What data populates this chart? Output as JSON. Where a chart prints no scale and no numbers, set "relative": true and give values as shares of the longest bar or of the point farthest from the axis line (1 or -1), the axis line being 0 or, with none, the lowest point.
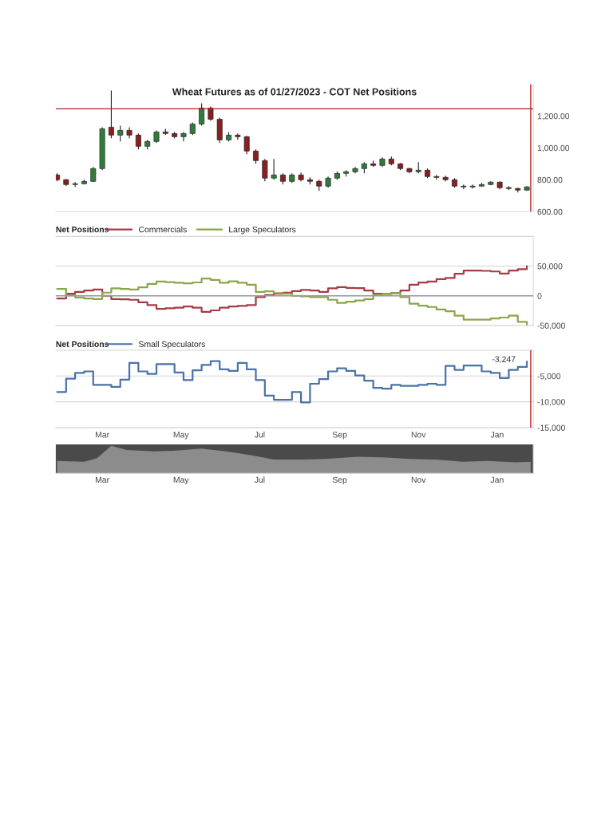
{
  "chart_data": [
    {
      "type": "candlestick",
      "title": "Wheat Futures as of 01/27/2023 - COT Net Positions",
      "tick_labels": "y",
      "x": [
        "2022-01-25",
        "2022-02-01",
        "2022-02-08",
        "2022-02-15",
        "2022-02-22",
        "2022-03-01",
        "2022-03-08",
        "2022-03-15",
        "2022-03-22",
        "2022-03-29",
        "2022-04-05",
        "2022-04-12",
        "2022-04-19",
        "2022-04-26",
        "2022-05-03",
        "2022-05-10",
        "2022-05-17",
        "2022-05-24",
        "2022-05-31",
        "2022-06-07",
        "2022-06-14",
        "2022-06-21",
        "2022-06-28",
        "2022-07-05",
        "2022-07-12",
        "2022-07-19",
        "2022-07-26",
        "2022-08-02",
        "2022-08-09",
        "2022-08-16",
        "2022-08-23",
        "2022-08-30",
        "2022-09-06",
        "2022-09-13",
        "2022-09-20",
        "2022-09-27",
        "2022-10-04",
        "2022-10-11",
        "2022-10-18",
        "2022-10-25",
        "2022-11-01",
        "2022-11-08",
        "2022-11-15",
        "2022-11-22",
        "2022-11-29",
        "2022-12-06",
        "2022-12-13",
        "2022-12-20",
        "2022-12-27",
        "2023-01-03",
        "2023-01-10",
        "2023-01-17",
        "2023-01-24"
      ],
      "ohlc": [
        [
          830,
          840,
          790,
          800
        ],
        [
          800,
          805,
          760,
          770
        ],
        [
          770,
          785,
          755,
          775
        ],
        [
          775,
          800,
          770,
          790
        ],
        [
          790,
          880,
          785,
          870
        ],
        [
          870,
          1130,
          860,
          1120
        ],
        [
          1130,
          1360,
          1060,
          1080
        ],
        [
          1080,
          1140,
          1040,
          1110
        ],
        [
          1110,
          1130,
          1060,
          1080
        ],
        [
          1080,
          1090,
          990,
          1010
        ],
        [
          1010,
          1050,
          990,
          1040
        ],
        [
          1040,
          1110,
          1030,
          1100
        ],
        [
          1100,
          1120,
          1080,
          1090
        ],
        [
          1090,
          1100,
          1060,
          1070
        ],
        [
          1070,
          1100,
          1040,
          1090
        ],
        [
          1090,
          1160,
          1080,
          1150
        ],
        [
          1150,
          1280,
          1140,
          1250
        ],
        [
          1250,
          1260,
          1170,
          1180
        ],
        [
          1180,
          1190,
          1030,
          1050
        ],
        [
          1050,
          1100,
          1040,
          1080
        ],
        [
          1080,
          1090,
          1050,
          1070
        ],
        [
          1070,
          1075,
          960,
          980
        ],
        [
          980,
          990,
          900,
          920
        ],
        [
          920,
          930,
          790,
          810
        ],
        [
          810,
          930,
          800,
          830
        ],
        [
          830,
          840,
          770,
          790
        ],
        [
          790,
          840,
          780,
          830
        ],
        [
          830,
          845,
          790,
          800
        ],
        [
          800,
          815,
          770,
          790
        ],
        [
          790,
          800,
          730,
          760
        ],
        [
          760,
          820,
          750,
          810
        ],
        [
          810,
          850,
          800,
          840
        ],
        [
          840,
          860,
          820,
          850
        ],
        [
          850,
          880,
          840,
          870
        ],
        [
          870,
          910,
          840,
          900
        ],
        [
          900,
          920,
          880,
          890
        ],
        [
          890,
          940,
          880,
          930
        ],
        [
          930,
          945,
          890,
          900
        ],
        [
          900,
          905,
          860,
          870
        ],
        [
          870,
          875,
          840,
          850
        ],
        [
          850,
          910,
          840,
          860
        ],
        [
          860,
          870,
          810,
          820
        ],
        [
          820,
          830,
          800,
          815
        ],
        [
          815,
          825,
          790,
          800
        ],
        [
          800,
          810,
          750,
          760
        ],
        [
          760,
          770,
          740,
          755
        ],
        [
          755,
          770,
          745,
          760
        ],
        [
          760,
          780,
          755,
          770
        ],
        [
          770,
          790,
          765,
          785
        ],
        [
          785,
          790,
          740,
          750
        ],
        [
          750,
          760,
          735,
          745
        ],
        [
          745,
          750,
          720,
          735
        ],
        [
          735,
          760,
          730,
          755
        ]
      ],
      "colors": [
        "#8b1e1e",
        "#8b1e1e",
        "#2f7d3a",
        "#2f7d3a",
        "#2f7d3a",
        "#2f7d3a",
        "#8b1e1e",
        "#2f7d3a",
        "#8b1e1e",
        "#8b1e1e",
        "#2f7d3a",
        "#2f7d3a",
        "#8b1e1e",
        "#8b1e1e",
        "#2f7d3a",
        "#2f7d3a",
        "#2f7d3a",
        "#8b1e1e",
        "#8b1e1e",
        "#2f7d3a",
        "#8b1e1e",
        "#8b1e1e",
        "#8b1e1e",
        "#8b1e1e",
        "#2f7d3a",
        "#8b1e1e",
        "#2f7d3a",
        "#8b1e1e",
        "#8b1e1e",
        "#8b1e1e",
        "#2f7d3a",
        "#2f7d3a",
        "#2f7d3a",
        "#2f7d3a",
        "#2f7d3a",
        "#8b1e1e",
        "#2f7d3a",
        "#8b1e1e",
        "#8b1e1e",
        "#8b1e1e",
        "#2f7d3a",
        "#8b1e1e",
        "#8b1e1e",
        "#8b1e1e",
        "#8b1e1e",
        "#8b1e1e",
        "#2f7d3a",
        "#2f7d3a",
        "#2f7d3a",
        "#8b1e1e",
        "#8b1e1e",
        "#8b1e1e",
        "#2f7d3a"
      ],
      "xlim": [
        "2022-01-24",
        "2023-01-29"
      ],
      "ylim": [
        600,
        1400
      ],
      "yticks": [
        {
          "value": 600,
          "label": "600.00"
        },
        {
          "value": 800,
          "label": "800.00"
        },
        {
          "value": 1000,
          "label": "1,000.00"
        },
        {
          "value": 1200,
          "label": "1,200.00"
        }
      ],
      "ref_lines": [
        {
          "axis": "y",
          "value": 1245,
          "color": "#b22222"
        },
        {
          "axis": "x",
          "value": "2023-01-27",
          "color": "#b22222"
        }
      ]
    },
    {
      "type": "step",
      "legend_title": "Net Positions",
      "legend": "top left",
      "grid": "y",
      "tick_labels": "y",
      "x": [
        "2022-01-25",
        "2022-02-01",
        "2022-02-08",
        "2022-02-15",
        "2022-02-22",
        "2022-03-01",
        "2022-03-08",
        "2022-03-15",
        "2022-03-22",
        "2022-03-29",
        "2022-04-05",
        "2022-04-12",
        "2022-04-19",
        "2022-04-26",
        "2022-05-03",
        "2022-05-10",
        "2022-05-17",
        "2022-05-24",
        "2022-05-31",
        "2022-06-07",
        "2022-06-14",
        "2022-06-21",
        "2022-06-28",
        "2022-07-05",
        "2022-07-12",
        "2022-07-19",
        "2022-07-26",
        "2022-08-02",
        "2022-08-09",
        "2022-08-16",
        "2022-08-23",
        "2022-08-30",
        "2022-09-06",
        "2022-09-13",
        "2022-09-20",
        "2022-09-27",
        "2022-10-04",
        "2022-10-11",
        "2022-10-18",
        "2022-10-25",
        "2022-11-01",
        "2022-11-08",
        "2022-11-15",
        "2022-11-22",
        "2022-11-29",
        "2022-12-06",
        "2022-12-13",
        "2022-12-20",
        "2022-12-27",
        "2023-01-03",
        "2023-01-10",
        "2023-01-17",
        "2023-01-24"
      ],
      "series": [
        {
          "name": "Commercials",
          "color": "#a83a45",
          "values": [
            -4500,
            3600,
            6700,
            8900,
            10700,
            0,
            -5400,
            -6000,
            -6700,
            -11000,
            -15600,
            -22000,
            -21000,
            -20000,
            -18000,
            -20000,
            -27000,
            -24500,
            -20000,
            -18000,
            -17000,
            -15600,
            -2200,
            1300,
            3600,
            5400,
            8000,
            9800,
            9000,
            6700,
            12500,
            14700,
            13400,
            13000,
            9000,
            3600,
            3100,
            4500,
            9000,
            18800,
            22300,
            24000,
            28000,
            30000,
            37000,
            42400,
            42400,
            42000,
            41000,
            37500,
            42400,
            45000,
            50000
          ]
        },
        {
          "name": "Large Speculators",
          "color": "#8aa64a",
          "values": [
            11600,
            900,
            -2700,
            -4500,
            -5400,
            5400,
            12500,
            11600,
            10700,
            14300,
            20000,
            24000,
            23000,
            22000,
            21000,
            22500,
            29000,
            26800,
            22000,
            24500,
            22000,
            18800,
            6700,
            7600,
            4500,
            3600,
            0,
            -900,
            -2200,
            -2200,
            -6700,
            -12000,
            -9800,
            -8000,
            -5400,
            1800,
            3600,
            4500,
            -2200,
            -13400,
            -16500,
            -18800,
            -23000,
            -26000,
            -33500,
            -40000,
            -40000,
            -40000,
            -38000,
            -36600,
            -33500,
            -43800,
            -49000
          ]
        }
      ],
      "xlim": [
        "2022-01-24",
        "2023-01-29"
      ],
      "ylim": [
        -50000,
        100000
      ],
      "yticks": [
        {
          "value": -50000,
          "label": "-50,000"
        },
        0,
        {
          "value": 50000,
          "label": "50,000"
        },
        {
          "value": 100000,
          "label": null
        }
      ],
      "ref_lines": [
        {
          "axis": "y",
          "value": 0,
          "color": "#9a9a9a"
        }
      ]
    },
    {
      "type": "step",
      "legend_title": "Net Positions",
      "legend": "top left",
      "grid": "y",
      "x": [
        "2022-01-25",
        "2022-02-01",
        "2022-02-08",
        "2022-02-15",
        "2022-02-22",
        "2022-03-01",
        "2022-03-08",
        "2022-03-15",
        "2022-03-22",
        "2022-03-29",
        "2022-04-05",
        "2022-04-12",
        "2022-04-19",
        "2022-04-26",
        "2022-05-03",
        "2022-05-10",
        "2022-05-17",
        "2022-05-24",
        "2022-05-31",
        "2022-06-07",
        "2022-06-14",
        "2022-06-21",
        "2022-06-28",
        "2022-07-05",
        "2022-07-12",
        "2022-07-19",
        "2022-07-26",
        "2022-08-02",
        "2022-08-09",
        "2022-08-16",
        "2022-08-23",
        "2022-08-30",
        "2022-09-06",
        "2022-09-13",
        "2022-09-20",
        "2022-09-27",
        "2022-10-04",
        "2022-10-11",
        "2022-10-18",
        "2022-10-25",
        "2022-11-01",
        "2022-11-08",
        "2022-11-15",
        "2022-11-22",
        "2022-11-29",
        "2022-12-06",
        "2022-12-13",
        "2022-12-20",
        "2022-12-27",
        "2023-01-03",
        "2023-01-10",
        "2023-01-17",
        "2023-01-24"
      ],
      "series": [
        {
          "name": "Small Speculators",
          "color": "#4a72a8",
          "values": [
            -8100,
            -5500,
            -4400,
            -4100,
            -6700,
            -6700,
            -7100,
            -5700,
            -2450,
            -4100,
            -4600,
            -2700,
            -2700,
            -4300,
            -5800,
            -3900,
            -2850,
            -2100,
            -3700,
            -4000,
            -2450,
            -3700,
            -5800,
            -8800,
            -9600,
            -9600,
            -8100,
            -10100,
            -6500,
            -5600,
            -4100,
            -3500,
            -4000,
            -4900,
            -5900,
            -7300,
            -7450,
            -6700,
            -6900,
            -6900,
            -6700,
            -6500,
            -6700,
            -3050,
            -3800,
            -2950,
            -2950,
            -4100,
            -4400,
            -5400,
            -3800,
            -3247,
            -2200
          ]
        }
      ],
      "xlim": [
        "2022-01-24",
        "2023-01-29"
      ],
      "ylim": [
        -15000,
        0
      ],
      "xticks": [
        {
          "value": "2022-03-01",
          "label": "Mar"
        },
        {
          "value": "2022-05-01",
          "label": "May"
        },
        {
          "value": "2022-07-01",
          "label": "Jul"
        },
        {
          "value": "2022-09-01",
          "label": "Sep"
        },
        {
          "value": "2022-11-01",
          "label": "Nov"
        },
        {
          "value": "2023-01-01",
          "label": "Jan"
        }
      ],
      "yticks": [
        {
          "value": -15000,
          "label": "-15,000"
        },
        {
          "value": -10000,
          "label": "-10,000"
        },
        {
          "value": -5000,
          "label": "-5,000"
        },
        {
          "value": 0,
          "label": null
        }
      ],
      "annotations": [
        {
          "text": "-3,247",
          "x": "2023-01-17",
          "y": -3247
        }
      ],
      "ref_lines": [
        {
          "axis": "x",
          "value": "2023-01-27",
          "color": "#b22222"
        }
      ]
    },
    {
      "type": "area",
      "relative": true,
      "tick_labels": "x",
      "x": [
        "2022-01-25",
        "2022-02-15",
        "2022-02-25",
        "2022-03-08",
        "2022-03-20",
        "2022-04-10",
        "2022-04-25",
        "2022-05-17",
        "2022-06-05",
        "2022-06-25",
        "2022-07-12",
        "2022-08-01",
        "2022-08-20",
        "2022-09-15",
        "2022-10-05",
        "2022-10-25",
        "2022-11-15",
        "2022-12-05",
        "2022-12-25",
        "2023-01-15",
        "2023-01-27"
      ],
      "series": [
        {
          "color": "#8c8c8c",
          "values": [
            0.45,
            0.42,
            0.55,
            1.0,
            0.85,
            0.8,
            0.82,
            0.9,
            0.8,
            0.65,
            0.5,
            0.5,
            0.52,
            0.6,
            0.58,
            0.52,
            0.5,
            0.42,
            0.45,
            0.4,
            0.42
          ]
        }
      ],
      "xlim": [
        "2022-01-24",
        "2023-01-29"
      ],
      "xticks": [
        {
          "value": "2022-03-01",
          "label": "Mar"
        },
        {
          "value": "2022-05-01",
          "label": "May"
        },
        {
          "value": "2022-07-01",
          "label": "Jul"
        },
        {
          "value": "2022-09-01",
          "label": "Sep"
        },
        {
          "value": "2022-11-01",
          "label": "Nov"
        },
        {
          "value": "2023-01-01",
          "label": "Jan"
        }
      ]
    }
  ]
}
